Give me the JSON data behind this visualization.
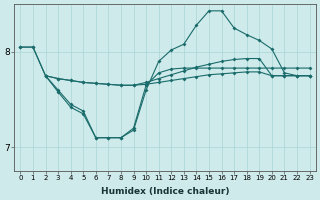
{
  "xlabel": "Humidex (Indice chaleur)",
  "x_ticks": [
    0,
    1,
    2,
    3,
    4,
    5,
    6,
    7,
    8,
    9,
    10,
    11,
    12,
    13,
    14,
    15,
    16,
    17,
    18,
    19,
    20,
    21,
    22,
    23
  ],
  "xlim": [
    -0.5,
    23.5
  ],
  "ylim": [
    6.75,
    8.5
  ],
  "y_ticks": [
    7,
    8
  ],
  "bg_color": "#ceeaea",
  "line_color": "#1a6b6b",
  "grid_color": "#aad5d5",
  "series1_x": [
    0,
    1,
    2,
    3,
    4,
    5,
    6,
    7,
    8,
    9,
    10,
    11,
    12,
    13,
    14,
    15,
    16,
    17,
    18,
    19,
    20,
    21,
    22,
    23
  ],
  "series1_y": [
    8.05,
    8.05,
    7.75,
    7.72,
    7.7,
    7.68,
    7.67,
    7.66,
    7.65,
    7.65,
    7.66,
    7.68,
    7.7,
    7.72,
    7.74,
    7.76,
    7.77,
    7.78,
    7.79,
    7.79,
    7.75,
    7.75,
    7.75,
    7.75
  ],
  "series2_x": [
    0,
    1,
    2,
    3,
    4,
    5,
    6,
    7,
    8,
    9,
    10,
    11,
    12,
    13,
    14,
    15,
    16,
    17,
    18,
    19,
    20,
    21,
    22,
    23
  ],
  "series2_y": [
    8.05,
    8.05,
    7.75,
    7.72,
    7.7,
    7.68,
    7.67,
    7.66,
    7.65,
    7.65,
    7.68,
    7.72,
    7.76,
    7.8,
    7.84,
    7.87,
    7.9,
    7.92,
    7.93,
    7.93,
    7.75,
    7.75,
    7.75,
    7.75
  ],
  "series3_x": [
    2,
    3,
    4,
    5,
    6,
    7,
    8,
    9,
    10,
    11,
    12,
    13,
    14,
    15,
    16,
    17,
    18,
    19,
    20,
    21,
    22,
    23
  ],
  "series3_y": [
    7.75,
    7.6,
    7.45,
    7.38,
    7.1,
    7.1,
    7.1,
    7.2,
    7.65,
    7.78,
    7.82,
    7.83,
    7.83,
    7.83,
    7.83,
    7.83,
    7.83,
    7.83,
    7.83,
    7.83,
    7.83,
    7.83
  ],
  "series4_x": [
    2,
    3,
    4,
    5,
    6,
    7,
    8,
    9,
    10,
    11,
    12,
    13,
    14,
    15,
    16,
    17,
    18,
    19,
    20,
    21,
    22,
    23
  ],
  "series4_y": [
    7.75,
    7.58,
    7.42,
    7.35,
    7.1,
    7.1,
    7.1,
    7.18,
    7.6,
    7.9,
    8.02,
    8.08,
    8.28,
    8.43,
    8.43,
    8.25,
    8.18,
    8.12,
    8.03,
    7.78,
    7.75,
    7.75
  ]
}
